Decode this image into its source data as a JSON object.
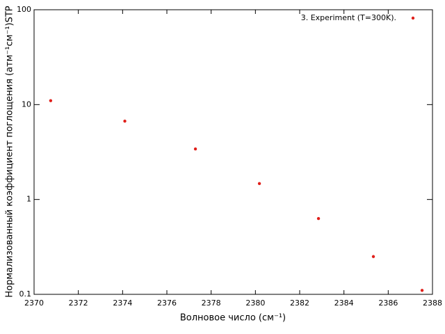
{
  "chart_data": {
    "type": "scatter",
    "xlabel": "Волновое число (см⁻¹)",
    "ylabel": "Нормализованный коэффициент поглощения (атм⁻¹см⁻¹)STP",
    "series": [
      {
        "name": "3. Experiment (T=300K).",
        "color": "#e0201b",
        "x": [
          2370.75,
          2374.1,
          2377.29,
          2380.18,
          2382.85,
          2385.33,
          2387.53
        ],
        "values": [
          11,
          6.7,
          3.41,
          1.47,
          0.63,
          0.25,
          0.11
        ]
      }
    ],
    "xlim": [
      2370,
      2388
    ],
    "xticks": [
      2370,
      2372,
      2374,
      2376,
      2378,
      2380,
      2382,
      2384,
      2386,
      2388
    ],
    "ylim": [
      0.1,
      100
    ],
    "yticks": [
      0.1,
      1,
      10,
      100
    ],
    "ylog": true,
    "legend": "top-right"
  }
}
